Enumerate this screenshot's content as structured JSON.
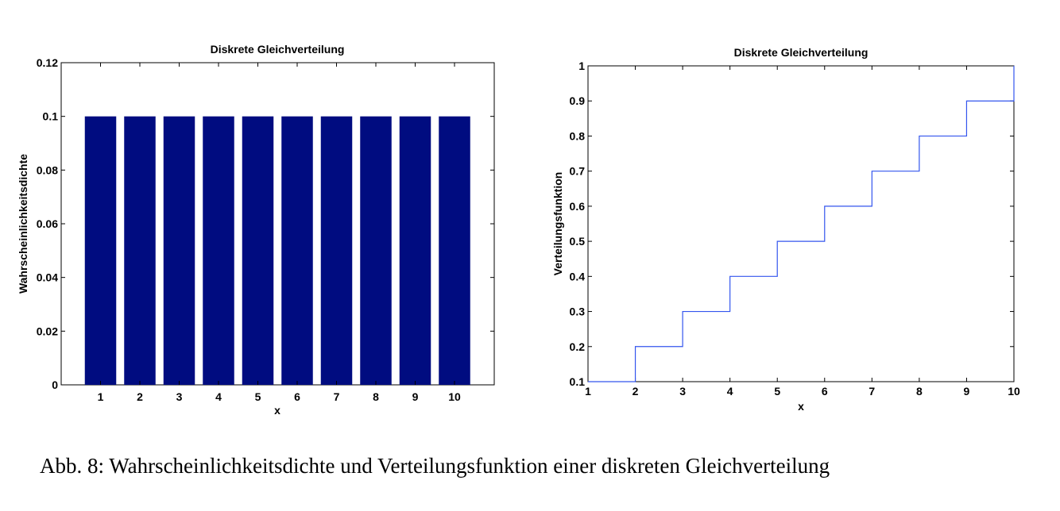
{
  "chart_data": [
    {
      "type": "bar",
      "title": "Diskrete Gleichverteilung",
      "xlabel": "x",
      "ylabel": "Wahrscheinlichkeitsdichte",
      "categories": [
        "1",
        "2",
        "3",
        "4",
        "5",
        "6",
        "7",
        "8",
        "9",
        "10"
      ],
      "values": [
        0.1,
        0.1,
        0.1,
        0.1,
        0.1,
        0.1,
        0.1,
        0.1,
        0.1,
        0.1
      ],
      "ylim": [
        0,
        0.12
      ],
      "yticks": [
        "0",
        "0.02",
        "0.04",
        "0.06",
        "0.08",
        "0.1",
        "0.12"
      ],
      "bar_color": "#000c80"
    },
    {
      "type": "line",
      "step": true,
      "title": "Diskrete Gleichverteilung",
      "xlabel": "x",
      "ylabel": "Verteilungsfunktion",
      "x": [
        1,
        2,
        3,
        4,
        5,
        6,
        7,
        8,
        9,
        10
      ],
      "y": [
        0.1,
        0.2,
        0.3,
        0.4,
        0.5,
        0.6,
        0.7,
        0.8,
        0.9,
        1.0
      ],
      "xlim": [
        1,
        10
      ],
      "ylim": [
        0.1,
        1
      ],
      "xticks": [
        "1",
        "2",
        "3",
        "4",
        "5",
        "6",
        "7",
        "8",
        "9",
        "10"
      ],
      "yticks": [
        "0.1",
        "0.2",
        "0.3",
        "0.4",
        "0.5",
        "0.6",
        "0.7",
        "0.8",
        "0.9",
        "1"
      ],
      "line_color": "#3355ee"
    }
  ],
  "caption": "Abb. 8: Wahrscheinlichkeitsdichte und Verteilungsfunktion einer diskreten Gleichverteilung"
}
